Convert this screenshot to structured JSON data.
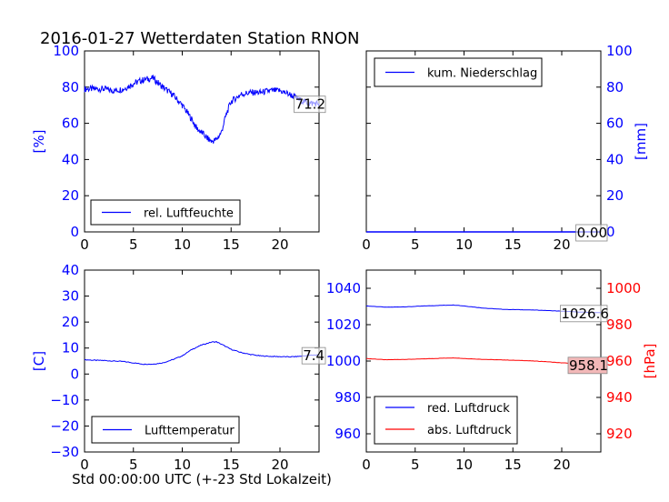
{
  "title": "2016-01-27 Wetterdaten Station RNON",
  "xlabel": "Std 00:00:00 UTC (+-23 Std Lokalzeit)",
  "colors": {
    "blue": "#0000ff",
    "red": "#ff0000",
    "text": "#000000"
  },
  "chart_data": [
    {
      "id": "humidity",
      "type": "line",
      "ylabel": "[%]",
      "xlim": [
        0,
        24
      ],
      "ylim": [
        0,
        100
      ],
      "xticks": [
        0,
        5,
        10,
        15,
        20
      ],
      "yticks": [
        0,
        20,
        40,
        60,
        80,
        100
      ],
      "axis_side": "left",
      "tick_color": "#0000ff",
      "legend_position": "lower-left",
      "last_value_label": "71.2",
      "series": [
        {
          "name": "rel. Luftfeuchte",
          "color": "#0000ff",
          "x": [
            0,
            1,
            2,
            3,
            4,
            5,
            6,
            7,
            8,
            9,
            10,
            11,
            11.5,
            12,
            12.5,
            13,
            13.5,
            14,
            14.5,
            15,
            16,
            17,
            18,
            19,
            20,
            21,
            22,
            23,
            24
          ],
          "y": [
            79,
            79,
            79,
            78,
            79,
            82,
            84,
            85,
            80,
            76,
            70,
            62,
            57,
            55,
            52,
            50,
            51,
            55,
            65,
            72,
            76,
            77,
            77,
            78,
            78,
            76,
            73,
            71,
            71
          ]
        }
      ]
    },
    {
      "id": "precip",
      "type": "line",
      "ylabel": "[mm]",
      "xlim": [
        0,
        24
      ],
      "ylim": [
        0,
        100
      ],
      "xticks": [
        0,
        5,
        10,
        15,
        20
      ],
      "yticks": [
        0,
        20,
        40,
        60,
        80,
        100
      ],
      "axis_side": "right",
      "tick_color": "#0000ff",
      "legend_position": "upper-left",
      "last_value_label": "0.00",
      "series": [
        {
          "name": "kum. Niederschlag",
          "color": "#0000ff",
          "x": [
            0,
            24
          ],
          "y": [
            0,
            0
          ]
        }
      ]
    },
    {
      "id": "temperature",
      "type": "line",
      "ylabel": "[C]",
      "xlim": [
        0,
        24
      ],
      "ylim": [
        -30,
        40
      ],
      "xticks": [
        0,
        5,
        10,
        15,
        20
      ],
      "yticks": [
        -30,
        -20,
        -10,
        0,
        10,
        20,
        30,
        40
      ],
      "axis_side": "left",
      "tick_color": "#0000ff",
      "legend_position": "lower-left",
      "last_value_label": "7.4",
      "series": [
        {
          "name": "Lufttemperatur",
          "color": "#0000ff",
          "x": [
            0,
            1,
            2,
            3,
            4,
            5,
            6,
            7,
            8,
            9,
            10,
            11,
            12,
            13,
            13.5,
            14,
            15,
            16,
            17,
            18,
            19,
            20,
            21,
            22,
            23,
            24
          ],
          "y": [
            5.5,
            5.3,
            5.2,
            5.0,
            4.8,
            4.3,
            3.8,
            3.8,
            4.3,
            5.5,
            7.0,
            9.5,
            11.2,
            12.3,
            12.4,
            11.5,
            9.5,
            8.3,
            7.5,
            7.0,
            6.8,
            6.7,
            6.6,
            6.8,
            7.2,
            7.4
          ]
        }
      ]
    },
    {
      "id": "pressure",
      "type": "line",
      "ylabel": "[hPa]",
      "xlim": [
        0,
        24
      ],
      "ylim": [
        950,
        1050
      ],
      "ylim_right": [
        910,
        1010
      ],
      "xticks": [
        0,
        5,
        10,
        15,
        20
      ],
      "yticks": [
        960,
        980,
        1000,
        1020,
        1040
      ],
      "yticks_right": [
        920,
        940,
        960,
        980,
        1000
      ],
      "tick_color": "#0000ff",
      "tick_color_right": "#ff0000",
      "legend_position": "lower-left",
      "last_value_labels": [
        "1026.6",
        "958.1"
      ],
      "series": [
        {
          "name": "red. Luftdruck",
          "color": "#0000ff",
          "x": [
            0,
            2,
            4,
            6,
            8,
            9,
            10,
            12,
            14,
            16,
            18,
            20,
            22,
            24
          ],
          "y": [
            1030.3,
            1029.6,
            1029.8,
            1030.3,
            1030.7,
            1030.8,
            1030.3,
            1029.1,
            1028.4,
            1028.2,
            1027.9,
            1027.4,
            1026.9,
            1026.6
          ]
        },
        {
          "name": "abs. Luftdruck",
          "color": "#ff0000",
          "x": [
            0,
            2,
            4,
            6,
            8,
            9,
            10,
            12,
            14,
            16,
            18,
            20,
            22,
            24
          ],
          "y": [
            1001.4,
            1000.7,
            1000.9,
            1001.2,
            1001.6,
            1001.7,
            1001.4,
            1000.9,
            1000.6,
            1000.3,
            999.8,
            999.0,
            998.6,
            998.1
          ]
        }
      ]
    }
  ]
}
